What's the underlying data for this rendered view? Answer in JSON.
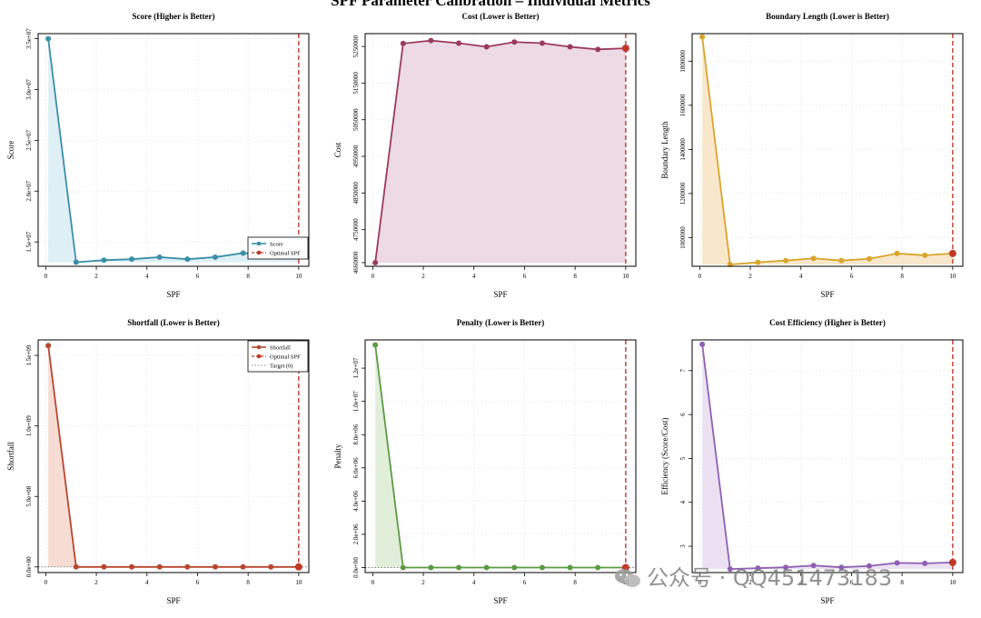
{
  "page_title": "SPF Parameter Calibration – Individual Metrics",
  "watermark": "公众号 · QQ451473183",
  "chart_data": [
    {
      "type": "line",
      "title": "Score (Higher is Better)",
      "xlabel": "SPF",
      "ylabel": "Score",
      "color": "#3a8fa8",
      "fill": "#d8ecf3",
      "x": [
        0.1,
        1.2,
        2.3,
        3.4,
        4.5,
        5.6,
        6.7,
        7.8,
        8.9,
        10
      ],
      "values": [
        35000000,
        13000000,
        13200000,
        13300000,
        13500000,
        13300000,
        13500000,
        13900000,
        13700000,
        13800000
      ],
      "xlim": [
        -0.3,
        10.4
      ],
      "ylim": [
        12600000,
        35500000
      ],
      "xticks": [
        0,
        2,
        4,
        6,
        8,
        10
      ],
      "xtick_labels": [
        "0",
        "2",
        "4",
        "6",
        "8",
        "10"
      ],
      "yticks": [
        15000000,
        20000000,
        25000000,
        30000000,
        35000000
      ],
      "ytick_labels": [
        "1.5e+07",
        "2.0e+07",
        "2.5e+07",
        "3.0e+07",
        "3.5e+07"
      ],
      "optimal_spf": 10,
      "legend": [
        "Score",
        "Optimal SPF"
      ],
      "legend_position": "bottom-right",
      "grid": true
    },
    {
      "type": "line",
      "title": "Cost (Lower is Better)",
      "xlabel": "SPF",
      "ylabel": "Cost",
      "color": "#9b3a5c",
      "fill": "#ead3e1",
      "x": [
        0.1,
        1.2,
        2.3,
        3.4,
        4.5,
        5.6,
        6.7,
        7.8,
        8.9,
        10
      ],
      "values": [
        4660000,
        5258000,
        5266000,
        5259000,
        5249000,
        5262000,
        5259000,
        5249000,
        5242000,
        5245000
      ],
      "xlim": [
        -0.3,
        10.4
      ],
      "ylim": [
        4650000,
        5285000
      ],
      "xticks": [
        0,
        2,
        4,
        6,
        8,
        10
      ],
      "xtick_labels": [
        "0",
        "2",
        "4",
        "6",
        "8",
        "10"
      ],
      "yticks": [
        4660000,
        4750000,
        4850000,
        4950000,
        5050000,
        5150000,
        5250000
      ],
      "ytick_labels": [
        "4660000",
        "4750000",
        "4850000",
        "4950000",
        "5050000",
        "5150000",
        "5250000"
      ],
      "optimal_spf": 10,
      "grid": true
    },
    {
      "type": "line",
      "title": "Boundary Length (Lower is Better)",
      "xlabel": "SPF",
      "ylabel": "Boundary Length",
      "color": "#d9a42a",
      "fill": "#f7e3c1",
      "x": [
        0.1,
        1.2,
        2.3,
        3.4,
        4.5,
        5.6,
        6.7,
        7.8,
        8.9,
        10
      ],
      "values": [
        1910000,
        878000,
        888000,
        896000,
        906000,
        896000,
        904000,
        928000,
        920000,
        928000
      ],
      "xlim": [
        -0.3,
        10.4
      ],
      "ylim": [
        870000,
        1925000
      ],
      "xticks": [
        0,
        2,
        4,
        6,
        8,
        10
      ],
      "xtick_labels": [
        "0",
        "2",
        "4",
        "6",
        "8",
        "10"
      ],
      "yticks": [
        1000000,
        1200000,
        1400000,
        1600000,
        1800000
      ],
      "ytick_labels": [
        "1000000",
        "1200000",
        "1400000",
        "1600000",
        "1800000"
      ],
      "optimal_spf": 10,
      "grid": true
    },
    {
      "type": "line",
      "title": "Shortfall (Lower is Better)",
      "xlabel": "SPF",
      "ylabel": "Shortfall",
      "color": "#b8462e",
      "fill": "#f6d6cc",
      "x": [
        0.1,
        1.2,
        2.3,
        3.4,
        4.5,
        5.6,
        6.7,
        7.8,
        8.9,
        10
      ],
      "values": [
        1570000000,
        0,
        0,
        0,
        0,
        0,
        0,
        0,
        0,
        0
      ],
      "xlim": [
        -0.3,
        10.4
      ],
      "ylim": [
        -40000000,
        1610000000
      ],
      "xticks": [
        0,
        2,
        4,
        6,
        8,
        10
      ],
      "xtick_labels": [
        "0",
        "2",
        "4",
        "6",
        "8",
        "10"
      ],
      "yticks": [
        0,
        500000000,
        1000000000,
        1500000000
      ],
      "ytick_labels": [
        "0.0e+00",
        "5.0e+08",
        "1.0e+09",
        "1.5e+09"
      ],
      "optimal_spf": 10,
      "target": 0,
      "legend": [
        "Shortfall",
        "Optimal SPF",
        "Target (0)"
      ],
      "legend_position": "top-right",
      "grid": true
    },
    {
      "type": "line",
      "title": "Penalty (Lower is Better)",
      "xlabel": "SPF",
      "ylabel": "Penalty",
      "color": "#5c9a44",
      "fill": "#dcebd3",
      "x": [
        0.1,
        1.2,
        2.3,
        3.4,
        4.5,
        5.6,
        6.7,
        7.8,
        8.9,
        10
      ],
      "values": [
        13400000,
        0,
        0,
        0,
        0,
        0,
        0,
        0,
        0,
        0
      ],
      "xlim": [
        -0.3,
        10.4
      ],
      "ylim": [
        -300000,
        13700000
      ],
      "xticks": [
        0,
        2,
        4,
        6,
        8,
        10
      ],
      "xtick_labels": [
        "0",
        "2",
        "4",
        "6",
        "8",
        "10"
      ],
      "yticks": [
        0,
        2000000,
        4000000,
        6000000,
        8000000,
        10000000,
        12000000
      ],
      "ytick_labels": [
        "0.0e+00",
        "2.0e+06",
        "4.0e+06",
        "6.0e+06",
        "8.0e+06",
        "1.0e+07",
        "1.2e+07"
      ],
      "optimal_spf": 10,
      "target": 0,
      "grid": true
    },
    {
      "type": "line",
      "title": "Cost Efficiency (Higher is Better)",
      "xlabel": "SPF",
      "ylabel": "Efficiency (Score/Cost)",
      "color": "#8e5fb3",
      "fill": "#e7dcf1",
      "x": [
        0.1,
        1.2,
        2.3,
        3.4,
        4.5,
        5.6,
        6.7,
        7.8,
        8.9,
        10
      ],
      "values": [
        7.6,
        2.48,
        2.5,
        2.52,
        2.56,
        2.52,
        2.55,
        2.62,
        2.61,
        2.63
      ],
      "xlim": [
        -0.3,
        10.4
      ],
      "ylim": [
        2.4,
        7.7
      ],
      "xticks": [
        0,
        2,
        4,
        6,
        8,
        10
      ],
      "xtick_labels": [
        "0",
        "2",
        "4",
        "6",
        "8",
        "10"
      ],
      "yticks": [
        3,
        4,
        5,
        6,
        7
      ],
      "ytick_labels": [
        "3",
        "4",
        "5",
        "6",
        "7"
      ],
      "optimal_spf": 10,
      "grid": true
    }
  ]
}
